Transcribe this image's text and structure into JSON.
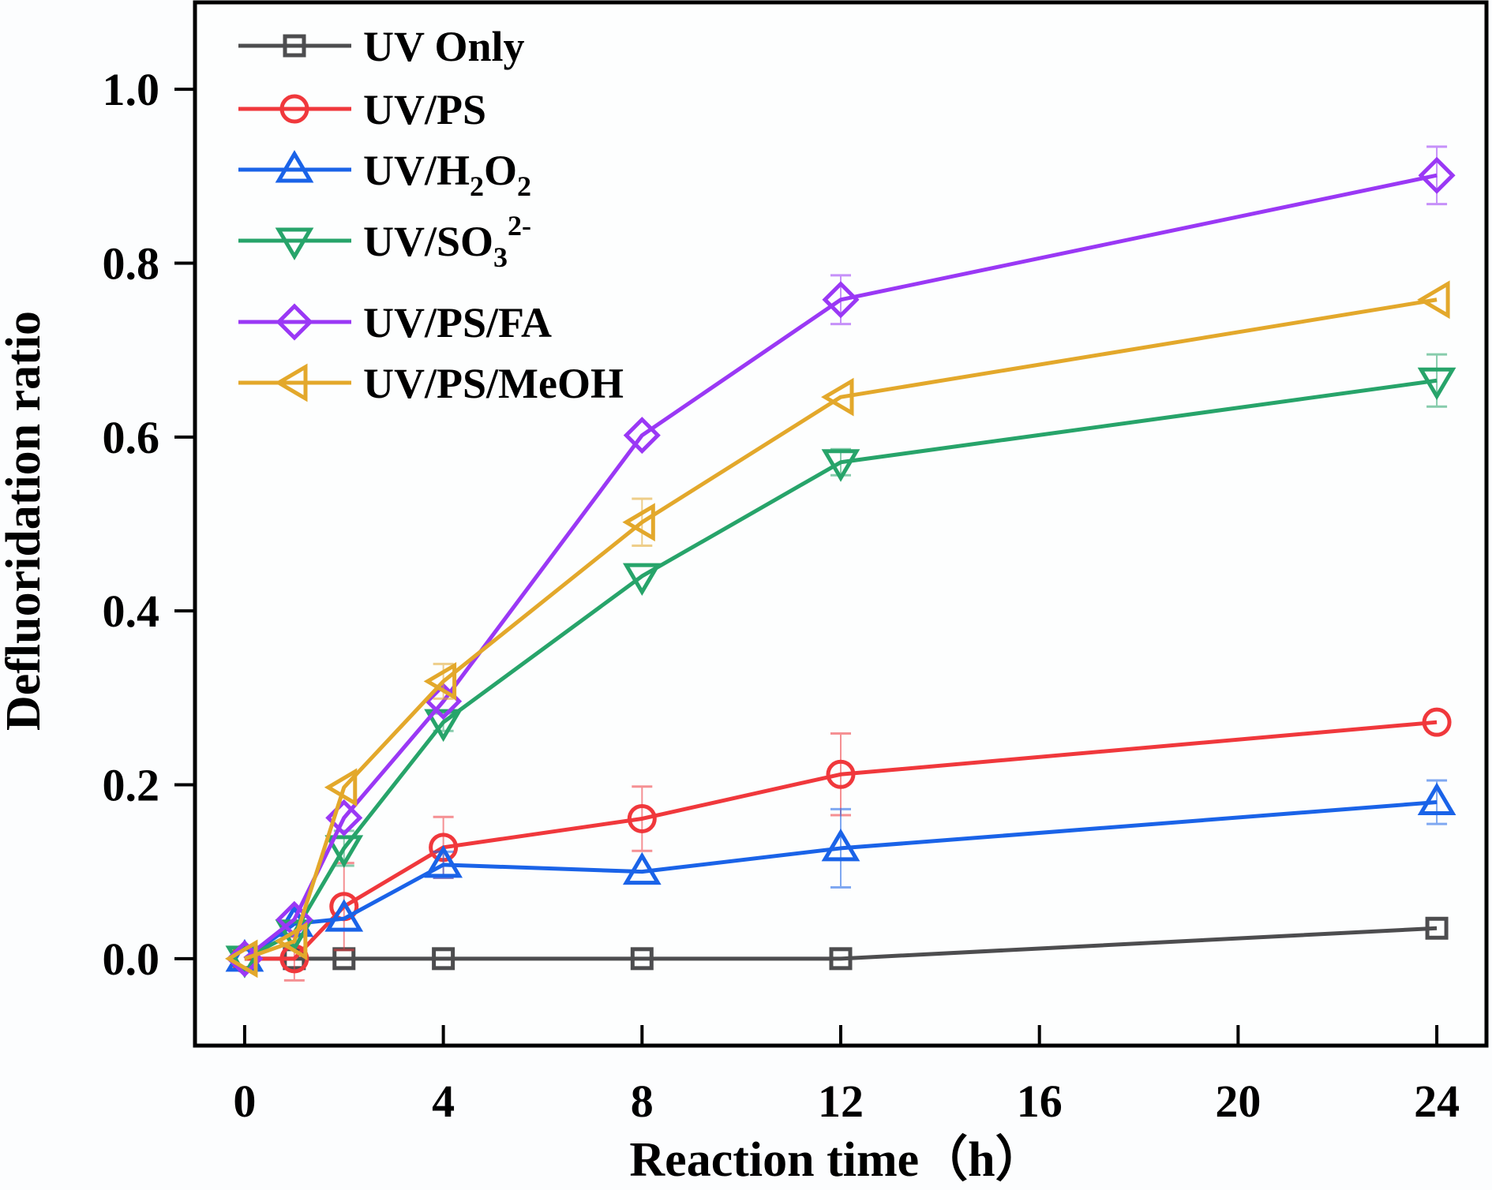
{
  "chart_data": {
    "type": "line",
    "title": "",
    "xlabel": "Reaction time（h）",
    "ylabel": "Defluoridation ratio",
    "xlim": [
      -1,
      25
    ],
    "ylim": [
      -0.1,
      1.1
    ],
    "xticks": [
      0,
      4,
      8,
      12,
      16,
      20,
      24
    ],
    "xtick_labels": [
      "0",
      "4",
      "8",
      "12",
      "16",
      "20",
      "24"
    ],
    "yticks": [
      0.0,
      0.2,
      0.4,
      0.6,
      0.8,
      1.0
    ],
    "ytick_labels": [
      "0.0",
      "0.2",
      "0.4",
      "0.6",
      "0.8",
      "1.0"
    ],
    "grid": false,
    "legend_position": "top-left",
    "x": [
      0,
      1,
      2,
      4,
      8,
      12,
      24
    ],
    "series": [
      {
        "name": "UV Only",
        "legend_main": "UV Only",
        "legend_sub": "",
        "legend_rest": "",
        "legend_sub2": "",
        "legend_sup": "",
        "color": "#4d4d4f",
        "marker": "square",
        "values": [
          0.0,
          0.0,
          0.0,
          0.0,
          0.0,
          0.0,
          0.035
        ],
        "errors": [
          0,
          0,
          0,
          0,
          0,
          0,
          0
        ]
      },
      {
        "name": "UV/PS",
        "legend_main": "UV/PS",
        "legend_sub": "",
        "legend_rest": "",
        "legend_sub2": "",
        "legend_sup": "",
        "color": "#f0383c",
        "marker": "circle",
        "values": [
          0.0,
          0.0,
          0.06,
          0.128,
          0.161,
          0.212,
          0.272
        ],
        "errors": [
          0,
          0.025,
          0.05,
          0.035,
          0.037,
          0.047,
          0
        ]
      },
      {
        "name": "UV/H2O2",
        "legend_main": "UV/H",
        "legend_sub": "2",
        "legend_rest": "O",
        "legend_sub2": "2",
        "legend_sup": "",
        "color": "#1a63e8",
        "marker": "triangle-up",
        "values": [
          0.0,
          0.04,
          0.046,
          0.108,
          0.1,
          0.127,
          0.18
        ],
        "errors": [
          0,
          0,
          0,
          0.015,
          0,
          0.045,
          0.025
        ]
      },
      {
        "name": "UV/SO3 2-",
        "legend_main": "UV/SO",
        "legend_sub": "3",
        "legend_rest": "",
        "legend_sub2": "",
        "legend_sup": "2-",
        "color": "#27a46a",
        "marker": "triangle-down",
        "values": [
          0.0,
          0.03,
          0.127,
          0.272,
          0.44,
          0.571,
          0.665
        ],
        "errors": [
          0,
          0,
          0.02,
          0.01,
          0,
          0.015,
          0.03
        ]
      },
      {
        "name": "UV/PS/FA",
        "legend_main": "UV/PS/FA",
        "legend_sub": "",
        "legend_rest": "",
        "legend_sub2": "",
        "legend_sup": "",
        "color": "#9a38f5",
        "marker": "diamond",
        "values": [
          0.0,
          0.045,
          0.162,
          0.296,
          0.602,
          0.758,
          0.901
        ],
        "errors": [
          0,
          0,
          0,
          0,
          0,
          0.028,
          0.033
        ]
      },
      {
        "name": "UV/PS/MeOH",
        "legend_main": "UV/PS/MeOH",
        "legend_sub": "",
        "legend_rest": "",
        "legend_sub2": "",
        "legend_sup": "",
        "color": "#e3a82b",
        "marker": "triangle-left",
        "values": [
          0.0,
          0.02,
          0.197,
          0.319,
          0.502,
          0.646,
          0.758
        ],
        "errors": [
          0,
          0,
          0,
          0.02,
          0.027,
          0,
          0
        ]
      }
    ]
  }
}
